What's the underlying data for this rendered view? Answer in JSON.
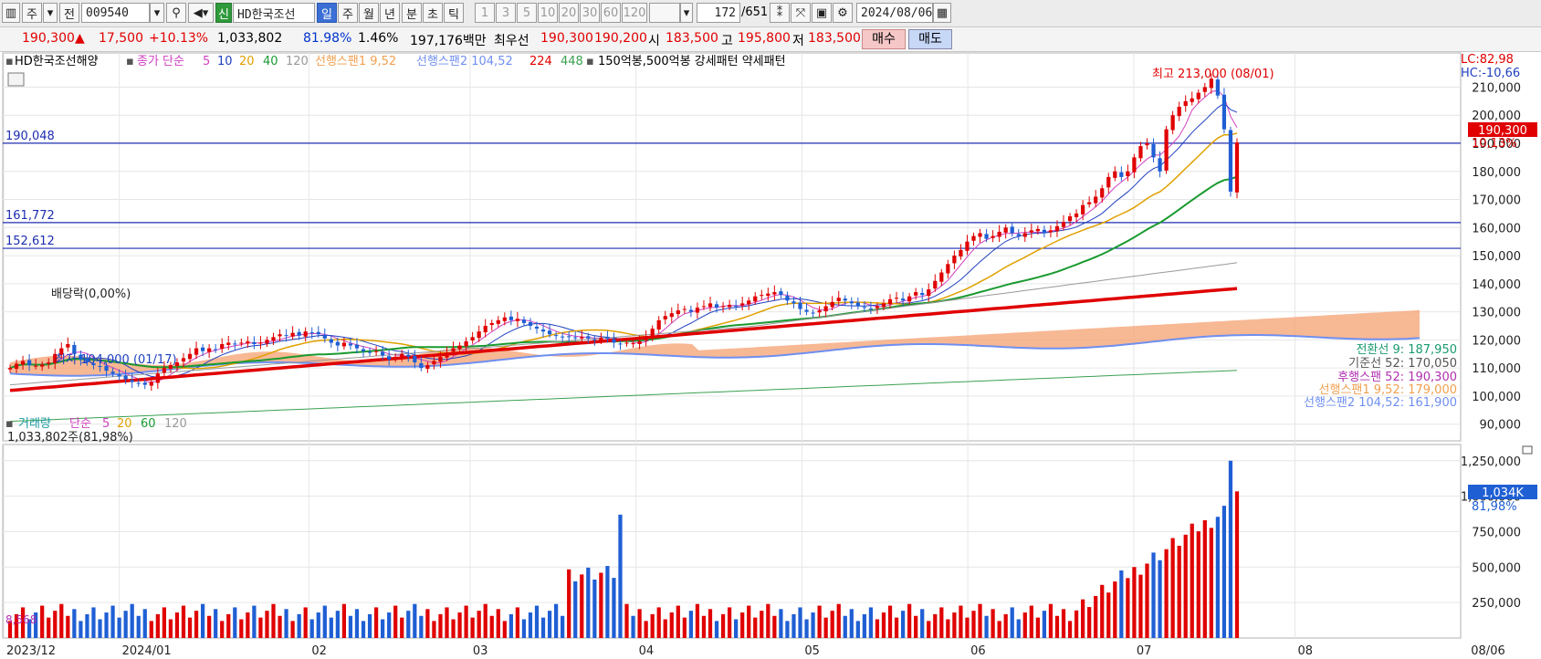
{
  "toolbar": {
    "chart_menu": "",
    "mode": "주",
    "prev": "전",
    "code": "009540",
    "search_icon": "search-icon",
    "sound_icon": "speaker-icon",
    "new_badge": "신",
    "name": "HD한국조선",
    "periods": [
      "일",
      "주",
      "월",
      "년",
      "분",
      "초",
      "틱"
    ],
    "active_period": "일",
    "intervals": [
      "1",
      "3",
      "5",
      "10",
      "20",
      "30",
      "60",
      "120"
    ],
    "count": "172",
    "total": "/651",
    "date": "2024/08/06"
  },
  "quote": {
    "price": "190,300",
    "change_arrow": "▲",
    "change": "17,500",
    "change_pct": "+10.13%",
    "volume": "1,033,802",
    "vol_ratio": "81.98%",
    "turnover": "1.46%",
    "amount": "197,176백만",
    "best_label": "최우선",
    "best_ask": "190,300",
    "best_bid": "190,200",
    "open_label": "시",
    "open": "183,500",
    "high_label": "고",
    "high": "195,800",
    "low_label": "저",
    "low": "183,500",
    "buy": "매수",
    "sell": "매도"
  },
  "legend": {
    "name": "HD한국조선해양",
    "ma_title": "종가 단순",
    "ma_periods": [
      "5",
      "10",
      "20",
      "40",
      "120"
    ],
    "span1": "선행스팬1 9,52",
    "span2": "선행스팬2 104,52",
    "p224": "224",
    "p448": "448",
    "extra": "150억봉,500억봉 강세패턴  약세패턴"
  },
  "volume_legend": {
    "title": "거래량",
    "ma_title": "단순",
    "ma_periods": [
      "5",
      "20",
      "60",
      "120"
    ],
    "current": "1,033,802주(81,98%)"
  },
  "annotations": {
    "high": "최고 213,000 (08/01)",
    "low": "최저 104,000 (01/17)",
    "dividend": "배당락(0,00%)",
    "lc": "LC:82,98",
    "hc": "HC:-10,66",
    "price_tag": "190,300",
    "pct_tag": "10,13%",
    "vol_tag": "1,034K",
    "vol_pct_tag": "81,98%",
    "bottom_date": "08/06",
    "vol_min_label": "8,568"
  },
  "ichimoku": [
    "전환선 9: 187,950",
    "기준선 52: 170,050",
    "후행스팬 52: 190,300",
    "선행스팬1 9,52: 179,000",
    "선행스팬2 104,52: 161,900"
  ],
  "colors": {
    "up": "#e00000",
    "down": "#1f5fd4",
    "ma5": "#d040c0",
    "ma10": "#2040c0",
    "ma20": "#e0a000",
    "ma40": "#1a9a30",
    "ma120": "#999999",
    "ma224": "#e00000",
    "ma448": "#3aa050",
    "cloud_up": "#f4a070",
    "cloud_down": "#6f8ff0"
  },
  "chart_data": [
    {
      "type": "candlestick",
      "title": "HD한국조선해양",
      "x_ticks": [
        "2023/12",
        "2024/01",
        "02",
        "03",
        "04",
        "05",
        "06",
        "07",
        "08"
      ],
      "y_ticks": [
        90000,
        100000,
        110000,
        120000,
        130000,
        140000,
        150000,
        160000,
        170000,
        180000,
        190000,
        200000,
        210000
      ],
      "ylim": [
        86000,
        216000
      ],
      "hlines": [
        {
          "label": "190,048",
          "value": 190048
        },
        {
          "label": "161,772",
          "value": 161772
        },
        {
          "label": "152,612",
          "value": 152612
        }
      ],
      "close_series": [
        110000,
        111500,
        112500,
        111000,
        110800,
        111200,
        112000,
        115000,
        117000,
        118500,
        115000,
        113000,
        112000,
        111000,
        110500,
        109000,
        108000,
        107000,
        106000,
        105000,
        104500,
        104000,
        105000,
        108000,
        110000,
        111000,
        112000,
        113500,
        115000,
        117000,
        116000,
        117000,
        116500,
        118500,
        119000,
        118500,
        119000,
        119500,
        118500,
        119000,
        120000,
        121000,
        122000,
        121500,
        122500,
        121500,
        123000,
        122500,
        122000,
        120500,
        119000,
        118000,
        119000,
        118000,
        117000,
        116000,
        115500,
        116000,
        114500,
        113000,
        114000,
        115000,
        114000,
        112000,
        110000,
        111000,
        112500,
        114000,
        115500,
        117000,
        118000,
        119500,
        121000,
        123000,
        125000,
        126000,
        127000,
        128000,
        127000,
        127500,
        126000,
        125000,
        124000,
        123000,
        122000,
        121500,
        121000,
        121200,
        120800,
        121000,
        120500,
        120000,
        120800,
        120500,
        119000,
        118500,
        119000,
        118800,
        119500,
        121000,
        124000,
        127000,
        128500,
        129500,
        130500,
        131000,
        130000,
        131500,
        132000,
        133000,
        131500,
        132000,
        132500,
        132000,
        133000,
        134000,
        135500,
        136000,
        136500,
        137000,
        136000,
        134000,
        133000,
        131000,
        130000,
        129500,
        130500,
        132000,
        133500,
        135000,
        134000,
        133000,
        132000,
        131500,
        131000,
        132000,
        133000,
        134500,
        135000,
        134000,
        135500,
        137000,
        136000,
        138000,
        141000,
        144000,
        147000,
        150000,
        152000,
        155000,
        157000,
        158000,
        156000,
        157000,
        158500,
        160000,
        158000,
        157000,
        158000,
        159000,
        159500,
        158000,
        159000,
        160500,
        162000,
        164000,
        165000,
        168000,
        169000,
        171000,
        174000,
        178000,
        180000,
        178000,
        180000,
        185000,
        189000,
        190000,
        185000,
        180000,
        195000,
        200000,
        203000,
        205000,
        206000,
        208000,
        210000,
        213000,
        207000,
        195000,
        172800,
        190300
      ],
      "volume": {
        "ylim": [
          0,
          1300000
        ],
        "y_ticks": [
          250000,
          500000,
          750000,
          1000000,
          1250000
        ],
        "last": 1033802,
        "max": 1250000
      }
    }
  ]
}
